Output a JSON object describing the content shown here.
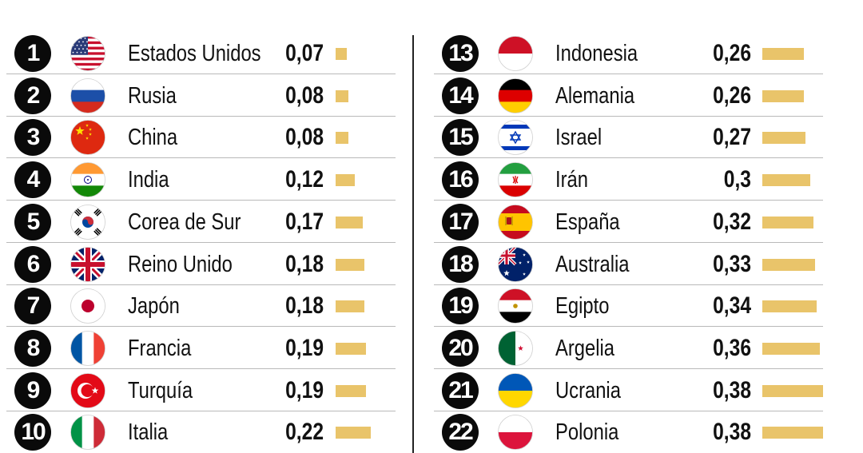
{
  "chart_data": {
    "type": "bar",
    "series_value_format": "comma-decimal",
    "bar_color": "#e9c46a",
    "rows": [
      {
        "rank": "1",
        "name": "Estados Unidos",
        "value_label": "0,07",
        "value": 0.07,
        "flag": "us-flag"
      },
      {
        "rank": "2",
        "name": "Rusia",
        "value_label": "0,08",
        "value": 0.08,
        "flag": "russia-flag"
      },
      {
        "rank": "3",
        "name": "China",
        "value_label": "0,08",
        "value": 0.08,
        "flag": "china-flag"
      },
      {
        "rank": "4",
        "name": "India",
        "value_label": "0,12",
        "value": 0.12,
        "flag": "india-flag"
      },
      {
        "rank": "5",
        "name": "Corea de Sur",
        "value_label": "0,17",
        "value": 0.17,
        "flag": "south-korea-flag"
      },
      {
        "rank": "6",
        "name": "Reino Unido",
        "value_label": "0,18",
        "value": 0.18,
        "flag": "uk-flag"
      },
      {
        "rank": "7",
        "name": "Japón",
        "value_label": "0,18",
        "value": 0.18,
        "flag": "japan-flag"
      },
      {
        "rank": "8",
        "name": "Francia",
        "value_label": "0,19",
        "value": 0.19,
        "flag": "france-flag"
      },
      {
        "rank": "9",
        "name": "Turquía",
        "value_label": "0,19",
        "value": 0.19,
        "flag": "turkey-flag"
      },
      {
        "rank": "10",
        "name": "Italia",
        "value_label": "0,22",
        "value": 0.22,
        "flag": "italy-flag"
      },
      {
        "rank": "13",
        "name": "Indonesia",
        "value_label": "0,26",
        "value": 0.26,
        "flag": "indonesia-flag"
      },
      {
        "rank": "14",
        "name": "Alemania",
        "value_label": "0,26",
        "value": 0.26,
        "flag": "germany-flag"
      },
      {
        "rank": "15",
        "name": "Israel",
        "value_label": "0,27",
        "value": 0.27,
        "flag": "israel-flag"
      },
      {
        "rank": "16",
        "name": "Irán",
        "value_label": "0,3",
        "value": 0.3,
        "flag": "iran-flag"
      },
      {
        "rank": "17",
        "name": "España",
        "value_label": "0,32",
        "value": 0.32,
        "flag": "spain-flag"
      },
      {
        "rank": "18",
        "name": "Australia",
        "value_label": "0,33",
        "value": 0.33,
        "flag": "australia-flag"
      },
      {
        "rank": "19",
        "name": "Egipto",
        "value_label": "0,34",
        "value": 0.34,
        "flag": "egypt-flag"
      },
      {
        "rank": "20",
        "name": "Argelia",
        "value_label": "0,36",
        "value": 0.36,
        "flag": "algeria-flag"
      },
      {
        "rank": "21",
        "name": "Ucrania",
        "value_label": "0,38",
        "value": 0.38,
        "flag": "ukraine-flag"
      },
      {
        "rank": "22",
        "name": "Polonia",
        "value_label": "0,38",
        "value": 0.38,
        "flag": "poland-flag"
      }
    ]
  }
}
